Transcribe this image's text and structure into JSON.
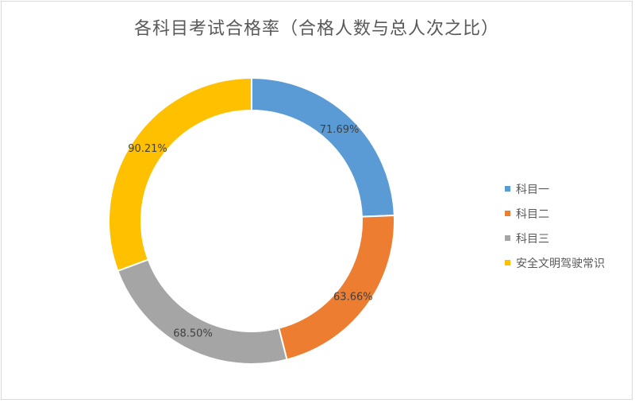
{
  "chart_data": {
    "type": "pie",
    "variant": "doughnut",
    "title": "各科目考试合格率（合格人数与总人次之比）",
    "categories": [
      "科目一",
      "科目二",
      "科目三",
      "安全文明驾驶常识"
    ],
    "values": [
      71.69,
      63.66,
      68.5,
      90.21
    ],
    "labels": [
      "71.69%",
      "63.66%",
      "68.50%",
      "90.21%"
    ],
    "colors": [
      "#5b9bd5",
      "#ed7d31",
      "#a5a5a5",
      "#ffc000"
    ],
    "legend_position": "right"
  }
}
